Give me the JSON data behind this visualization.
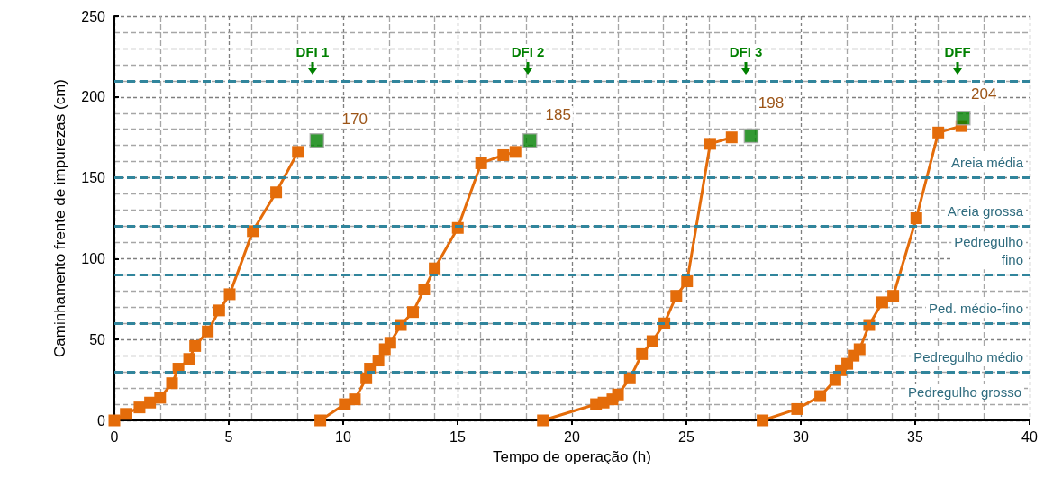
{
  "chart_data": {
    "type": "line",
    "xlabel": "Tempo de operação (h)",
    "ylabel": "Caminhamento frente de impurezas (cm)",
    "xlim": [
      0,
      40
    ],
    "xticks": [
      0,
      5,
      10,
      15,
      20,
      25,
      30,
      35,
      40
    ],
    "ylim": [
      0,
      250
    ],
    "yticks": [
      0,
      50,
      100,
      150,
      200,
      250
    ],
    "grid": true,
    "marker": "square",
    "line_style": "solid",
    "series": [
      {
        "color": "#e46c0a",
        "x": [
          0,
          0.5,
          1.1,
          1.56,
          2.0,
          2.52,
          2.8,
          3.27,
          3.53,
          4.08,
          4.58,
          5.04,
          6.05,
          7.07,
          8.02
        ],
        "values": [
          0,
          4,
          8,
          11,
          14,
          23,
          32,
          38,
          46,
          55,
          68,
          78,
          117,
          141,
          166
        ]
      },
      {
        "color": "#e46c0a",
        "x": [
          9.0,
          10.07,
          10.51,
          11.01,
          11.17,
          11.54,
          11.82,
          12.06,
          12.52,
          13.05,
          13.54,
          14.0,
          15.01,
          16.03,
          17.0,
          17.53
        ],
        "values": [
          0,
          10,
          13,
          26,
          32,
          37,
          44,
          48,
          59,
          67,
          81,
          94,
          119,
          159,
          164,
          166
        ]
      },
      {
        "color": "#e46c0a",
        "x": [
          18.73,
          21.05,
          21.38,
          21.77,
          22.01,
          22.53,
          23.06,
          23.52,
          24.04,
          24.56,
          25.03,
          26.04,
          26.98
        ],
        "values": [
          0,
          10,
          11,
          13,
          16,
          26,
          41,
          49,
          60,
          77,
          86,
          171,
          175
        ]
      },
      {
        "color": "#e46c0a",
        "x": [
          28.33,
          29.84,
          30.85,
          31.51,
          31.75,
          32.03,
          32.31,
          32.57,
          32.99,
          33.56,
          34.04,
          35.05,
          36.01,
          37.02
        ],
        "values": [
          0,
          7,
          15,
          25,
          31,
          35,
          40,
          44,
          59,
          73,
          77,
          125,
          178,
          182
        ]
      },
      {
        "type": "scatter",
        "color": "#008000",
        "x": [
          8.85,
          18.16,
          27.83,
          37.1
        ],
        "values": [
          173,
          173,
          176,
          187
        ]
      }
    ],
    "ref_lines": [
      {
        "axis": "y",
        "value": 210,
        "line_style": "dashed",
        "color": "#31859c"
      },
      {
        "axis": "y",
        "value": 150,
        "line_style": "dashed",
        "color": "#31859c",
        "label": "Areia média"
      },
      {
        "axis": "y",
        "value": 120,
        "line_style": "dashed",
        "color": "#31859c",
        "label": "Areia grossa"
      },
      {
        "axis": "y",
        "value": 90,
        "line_style": "dashed",
        "color": "#31859c",
        "label": "Pedregulho\nfino"
      },
      {
        "axis": "y",
        "value": 60,
        "line_style": "dashed",
        "color": "#31859c",
        "label": "Ped. médio-fino"
      },
      {
        "axis": "y",
        "value": 30,
        "line_style": "dashed",
        "color": "#31859c",
        "label": "Pedregulho médio"
      }
    ],
    "annotations": [
      "Pedregulho grosso",
      {
        "text": "DFI 1",
        "x": 8.66,
        "y": 228
      },
      {
        "text": "DFI 2",
        "x": 18.07,
        "y": 228
      },
      {
        "text": "DFI 3",
        "x": 27.6,
        "y": 228
      },
      {
        "text": "DFF",
        "x": 36.85,
        "y": 228
      },
      {
        "text": "170",
        "x": 10.5,
        "y": 186
      },
      {
        "text": "185",
        "x": 19.4,
        "y": 189
      },
      {
        "text": "198",
        "x": 28.7,
        "y": 196
      },
      {
        "text": "204",
        "x": 38.0,
        "y": 202
      }
    ]
  }
}
